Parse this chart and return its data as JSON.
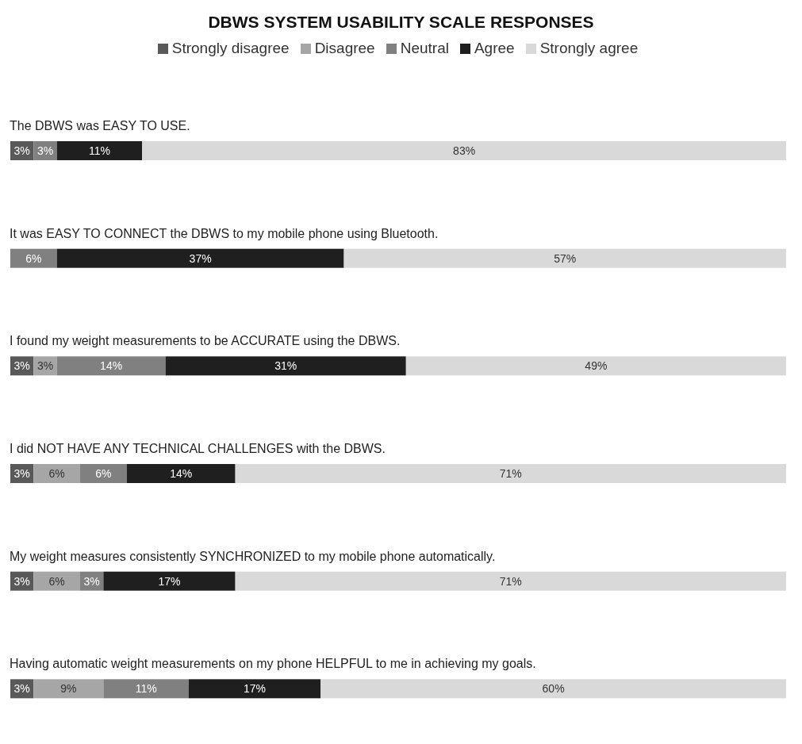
{
  "chart_data": {
    "type": "bar",
    "orientation": "horizontal",
    "stacked": true,
    "title": "DBWS SYSTEM USABILITY SCALE RESPONSES",
    "legend": "top",
    "categories": [
      "The DBWS was EASY TO USE.",
      "It was EASY TO CONNECT the DBWS to my mobile phone using Bluetooth.",
      "I found my weight measurements to be ACCURATE using the DBWS.",
      "I did NOT HAVE ANY TECHNICAL CHALLENGES with the DBWS.",
      "My weight measures consistently SYNCHRONIZED to my mobile phone automatically.",
      "Having automatic weight measurements on my phone HELPFUL to me in achieving my goals."
    ],
    "series": [
      {
        "name": "Strongly disagree",
        "color": "#595959",
        "values": [
          3,
          null,
          3,
          3,
          3,
          3
        ],
        "value_labels": [
          "3%",
          null,
          "3%",
          "3%",
          "3%",
          "3%"
        ]
      },
      {
        "name": "Disagree",
        "color": "#a6a6a6",
        "values": [
          null,
          null,
          3,
          6,
          6,
          9
        ],
        "value_labels": [
          null,
          null,
          "3%",
          "6%",
          "6%",
          "9%"
        ]
      },
      {
        "name": "Neutral",
        "color": "#808080",
        "values": [
          3,
          6,
          14,
          6,
          3,
          11
        ],
        "value_labels": [
          "3%",
          "6%",
          "14%",
          "6%",
          "3%",
          "11%"
        ]
      },
      {
        "name": "Agree",
        "color": "#1f1f1f",
        "values": [
          11,
          37,
          31,
          14,
          17,
          17
        ],
        "value_labels": [
          "11%",
          "37%",
          "31%",
          "14%",
          "17%",
          "17%"
        ]
      },
      {
        "name": "Strongly agree",
        "color": "#d9d9d9",
        "values": [
          83,
          57,
          49,
          71,
          71,
          60
        ],
        "value_labels": [
          "83%",
          "57%",
          "49%",
          "71%",
          "71%",
          "60%"
        ]
      }
    ]
  }
}
